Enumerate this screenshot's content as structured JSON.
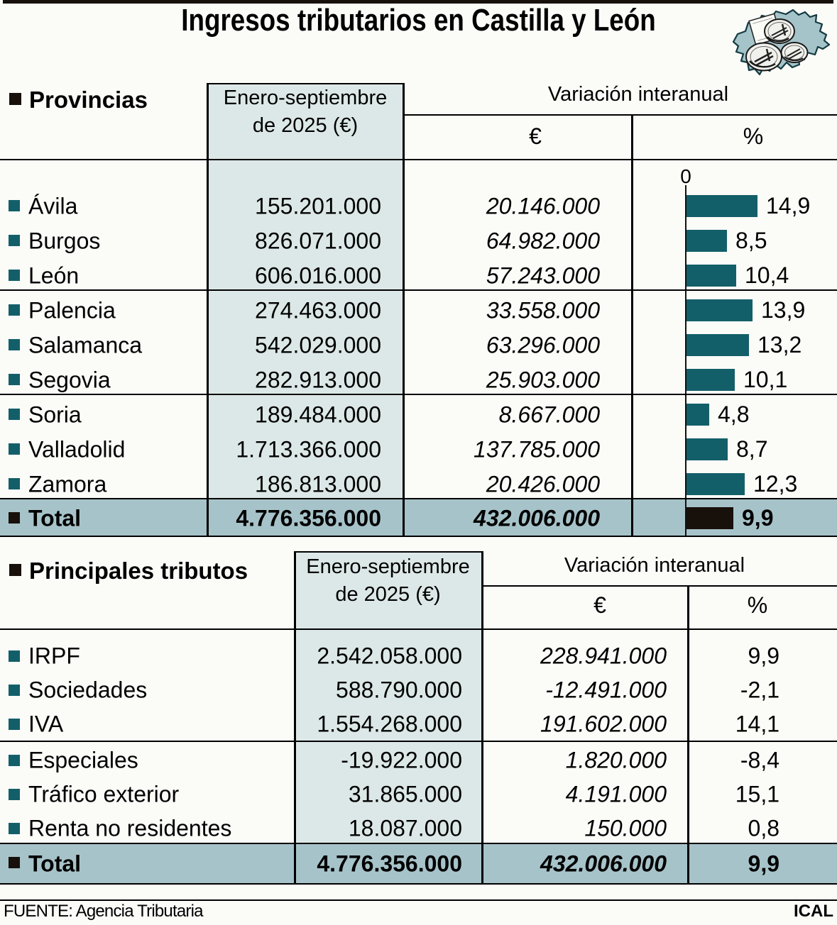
{
  "title": "Ingresos tributarios en Castilla y León",
  "footer": {
    "source": "FUENTE: Agencia Tributaria",
    "credit": "ICAL"
  },
  "colors": {
    "teal": "#135f69",
    "dark": "#18100b",
    "shade": "#dce8e7",
    "band": "#a7c3ca",
    "bg": "#fbfbf8",
    "map_fill": "#a5c4ca"
  },
  "provinces_table": {
    "section_title": "Provincias",
    "period_header_line1": "Enero-septiembre",
    "period_header_line2": "de 2025 (€)",
    "variation_header": "Variación interanual",
    "eur_header": "€",
    "pct_header": "%",
    "axis_zero_label": "0",
    "rows": [
      {
        "label": "Ávila",
        "amount": "155.201.000",
        "variation_eur": "20.146.000",
        "variation_pct": 14.9,
        "variation_pct_label": "14,9"
      },
      {
        "label": "Burgos",
        "amount": "826.071.000",
        "variation_eur": "64.982.000",
        "variation_pct": 8.5,
        "variation_pct_label": "8,5"
      },
      {
        "label": "León",
        "amount": "606.016.000",
        "variation_eur": "57.243.000",
        "variation_pct": 10.4,
        "variation_pct_label": "10,4"
      },
      {
        "label": "Palencia",
        "amount": "274.463.000",
        "variation_eur": "33.558.000",
        "variation_pct": 13.9,
        "variation_pct_label": "13,9"
      },
      {
        "label": "Salamanca",
        "amount": "542.029.000",
        "variation_eur": "63.296.000",
        "variation_pct": 13.2,
        "variation_pct_label": "13,2"
      },
      {
        "label": "Segovia",
        "amount": "282.913.000",
        "variation_eur": "25.903.000",
        "variation_pct": 10.1,
        "variation_pct_label": "10,1"
      },
      {
        "label": "Soria",
        "amount": "189.484.000",
        "variation_eur": "8.667.000",
        "variation_pct": 4.8,
        "variation_pct_label": "4,8"
      },
      {
        "label": "Valladolid",
        "amount": "1.713.366.000",
        "variation_eur": "137.785.000",
        "variation_pct": 8.7,
        "variation_pct_label": "8,7"
      },
      {
        "label": "Zamora",
        "amount": "186.813.000",
        "variation_eur": "20.426.000",
        "variation_pct": 12.3,
        "variation_pct_label": "12,3"
      }
    ],
    "total": {
      "label": "Total",
      "amount": "4.776.356.000",
      "variation_eur": "432.006.000",
      "variation_pct": 9.9,
      "variation_pct_label": "9,9"
    }
  },
  "taxes_table": {
    "section_title": "Principales tributos",
    "period_header_line1": "Enero-septiembre",
    "period_header_line2": "de 2025 (€)",
    "variation_header": "Variación interanual",
    "eur_header": "€",
    "pct_header": "%",
    "rows": [
      {
        "label": "IRPF",
        "amount": "2.542.058.000",
        "variation_eur": "228.941.000",
        "variation_pct_label": "9,9"
      },
      {
        "label": "Sociedades",
        "amount": "588.790.000",
        "variation_eur": "-12.491.000",
        "variation_pct_label": "-2,1"
      },
      {
        "label": "IVA",
        "amount": "1.554.268.000",
        "variation_eur": "191.602.000",
        "variation_pct_label": "14,1"
      },
      {
        "label": "Especiales",
        "amount": "-19.922.000",
        "variation_eur": "1.820.000",
        "variation_pct_label": "-8,4"
      },
      {
        "label": "Tráfico exterior",
        "amount": "31.865.000",
        "variation_eur": "4.191.000",
        "variation_pct_label": "15,1"
      },
      {
        "label": "Renta no residentes",
        "amount": "18.087.000",
        "variation_eur": "150.000",
        "variation_pct_label": "0,8"
      }
    ],
    "total": {
      "label": "Total",
      "amount": "4.776.356.000",
      "variation_eur": "432.006.000",
      "variation_pct_label": "9,9"
    }
  },
  "chart_data": [
    {
      "type": "bar",
      "title": "Provincias — Variación interanual (%)",
      "orientation": "horizontal",
      "categories": [
        "Ávila",
        "Burgos",
        "León",
        "Palencia",
        "Salamanca",
        "Segovia",
        "Soria",
        "Valladolid",
        "Zamora",
        "Total"
      ],
      "values": [
        14.9,
        8.5,
        10.4,
        13.9,
        13.2,
        10.1,
        4.8,
        8.7,
        12.3,
        9.9
      ],
      "xlabel": "%",
      "ylabel": "",
      "xlim": [
        0,
        16
      ],
      "axis_zero_label": "0",
      "bar_color": "#135f69",
      "total_bar_color": "#18100b"
    },
    {
      "type": "table",
      "title": "Provincias",
      "columns": [
        "Provincias",
        "Enero-septiembre de 2025 (€)",
        "Variación interanual €",
        "Variación interanual %"
      ],
      "rows": [
        [
          "Ávila",
          "155.201.000",
          "20.146.000",
          "14,9"
        ],
        [
          "Burgos",
          "826.071.000",
          "64.982.000",
          "8,5"
        ],
        [
          "León",
          "606.016.000",
          "57.243.000",
          "10,4"
        ],
        [
          "Palencia",
          "274.463.000",
          "33.558.000",
          "13,9"
        ],
        [
          "Salamanca",
          "542.029.000",
          "63.296.000",
          "13,2"
        ],
        [
          "Segovia",
          "282.913.000",
          "25.903.000",
          "10,1"
        ],
        [
          "Soria",
          "189.484.000",
          "8.667.000",
          "4,8"
        ],
        [
          "Valladolid",
          "1.713.366.000",
          "137.785.000",
          "8,7"
        ],
        [
          "Zamora",
          "186.813.000",
          "20.426.000",
          "12,3"
        ],
        [
          "Total",
          "4.776.356.000",
          "432.006.000",
          "9,9"
        ]
      ]
    },
    {
      "type": "table",
      "title": "Principales tributos",
      "columns": [
        "Principales tributos",
        "Enero-septiembre de 2025 (€)",
        "Variación interanual €",
        "Variación interanual %"
      ],
      "rows": [
        [
          "IRPF",
          "2.542.058.000",
          "228.941.000",
          "9,9"
        ],
        [
          "Sociedades",
          "588.790.000",
          "-12.491.000",
          "-2,1"
        ],
        [
          "IVA",
          "1.554.268.000",
          "191.602.000",
          "14,1"
        ],
        [
          "Especiales",
          "-19.922.000",
          "1.820.000",
          "-8,4"
        ],
        [
          "Tráfico exterior",
          "31.865.000",
          "4.191.000",
          "15,1"
        ],
        [
          "Renta no residentes",
          "18.087.000",
          "150.000",
          "0,8"
        ],
        [
          "Total",
          "4.776.356.000",
          "432.006.000",
          "9,9"
        ]
      ]
    }
  ]
}
